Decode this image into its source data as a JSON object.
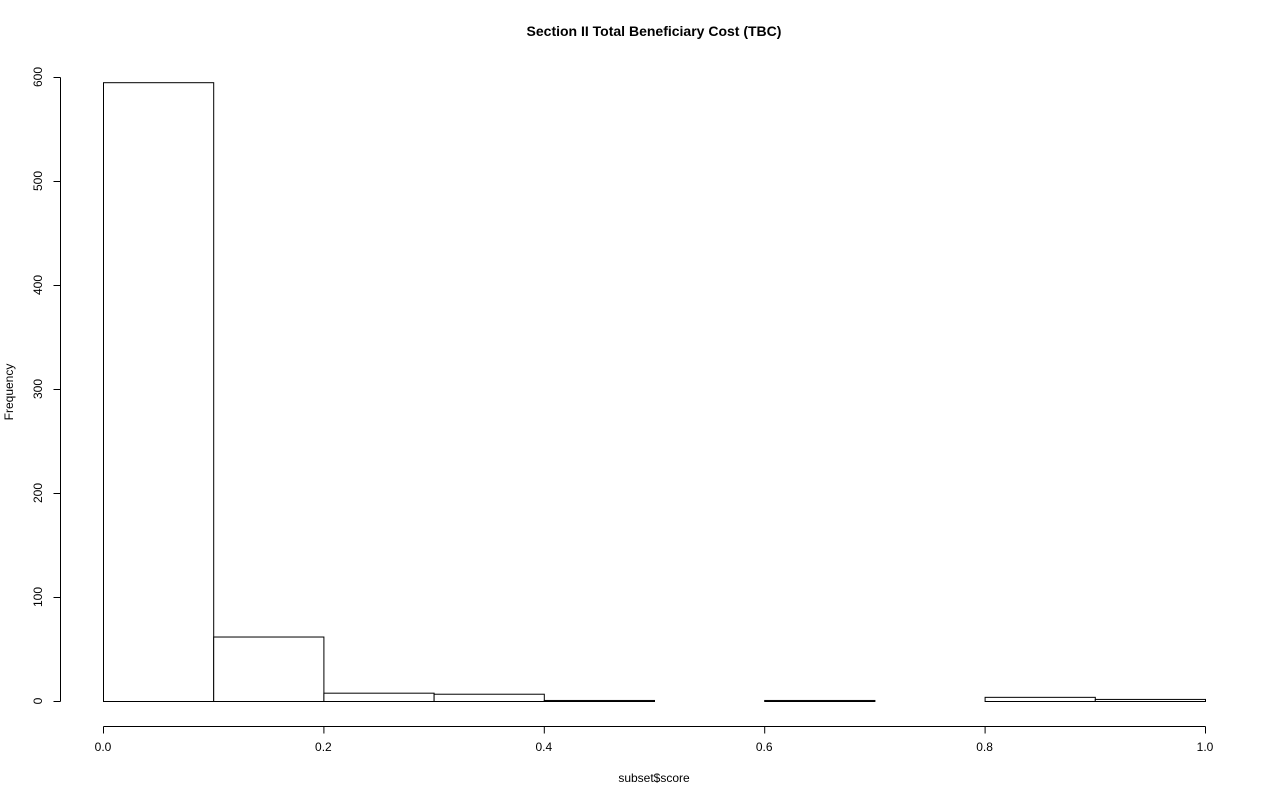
{
  "chart_data": {
    "type": "bar",
    "title": "Section II Total Beneficiary Cost (TBC)",
    "xlabel": "subset$score",
    "ylabel": "Frequency",
    "bin_edges": [
      0.0,
      0.1,
      0.2,
      0.3,
      0.4,
      0.5,
      0.6,
      0.7,
      0.8,
      0.9,
      1.0
    ],
    "values": [
      595,
      62,
      8,
      7,
      1,
      0,
      1,
      0,
      4,
      2
    ],
    "xlim": [
      0,
      1
    ],
    "ylim": [
      0,
      600
    ],
    "x_ticks": [
      {
        "value": 0.0,
        "label": "0.0"
      },
      {
        "value": 0.2,
        "label": "0.2"
      },
      {
        "value": 0.4,
        "label": "0.4"
      },
      {
        "value": 0.6,
        "label": "0.6"
      },
      {
        "value": 0.8,
        "label": "0.8"
      },
      {
        "value": 1.0,
        "label": "1.0"
      }
    ],
    "y_ticks": [
      {
        "value": 0,
        "label": "0"
      },
      {
        "value": 100,
        "label": "100"
      },
      {
        "value": 200,
        "label": "200"
      },
      {
        "value": 300,
        "label": "300"
      },
      {
        "value": 400,
        "label": "400"
      },
      {
        "value": 500,
        "label": "500"
      },
      {
        "value": 600,
        "label": "600"
      }
    ],
    "grid": false,
    "bar_fill": "#ffffff",
    "bar_stroke": "#000000"
  }
}
